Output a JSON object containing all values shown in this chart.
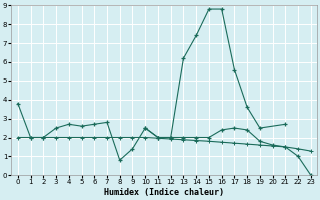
{
  "xlabel": "Humidex (Indice chaleur)",
  "x": [
    0,
    1,
    2,
    3,
    4,
    5,
    6,
    7,
    8,
    9,
    10,
    11,
    12,
    13,
    14,
    15,
    16,
    17,
    18,
    19,
    20,
    21,
    22,
    23
  ],
  "line1_x": [
    0,
    1,
    2,
    3,
    4,
    5,
    6,
    7,
    8,
    9,
    10,
    11,
    12,
    13,
    14,
    15,
    16,
    17,
    18,
    19,
    21
  ],
  "line1_y": [
    3.8,
    2.0,
    2.0,
    2.5,
    2.7,
    2.6,
    2.7,
    2.8,
    0.8,
    1.4,
    2.5,
    2.0,
    2.0,
    6.2,
    7.4,
    8.8,
    8.8,
    5.6,
    3.6,
    2.5,
    2.7
  ],
  "line2_x": [
    10,
    11,
    12,
    13,
    14,
    15,
    16,
    17,
    18,
    19,
    20,
    21,
    22,
    23
  ],
  "line2_y": [
    2.5,
    2.0,
    2.0,
    2.0,
    2.0,
    2.0,
    2.4,
    2.5,
    2.4,
    1.8,
    1.6,
    1.5,
    1.0,
    0.0
  ],
  "line3_x": [
    0,
    1,
    2,
    3,
    4,
    5,
    6,
    7,
    8,
    9,
    10,
    11,
    12,
    13,
    14,
    15,
    16,
    17,
    18,
    19,
    20,
    21,
    22,
    23
  ],
  "line3_y": [
    2.0,
    2.0,
    2.0,
    2.0,
    2.0,
    2.0,
    2.0,
    2.0,
    2.0,
    2.0,
    2.0,
    1.96,
    1.92,
    1.88,
    1.84,
    1.8,
    1.75,
    1.7,
    1.65,
    1.6,
    1.55,
    1.5,
    1.4,
    1.28
  ],
  "line_color": "#1a6b5a",
  "bg_color": "#d6eef2",
  "grid_color": "#ffffff",
  "ylim": [
    0,
    9
  ],
  "xlim": [
    -0.5,
    23.5
  ]
}
